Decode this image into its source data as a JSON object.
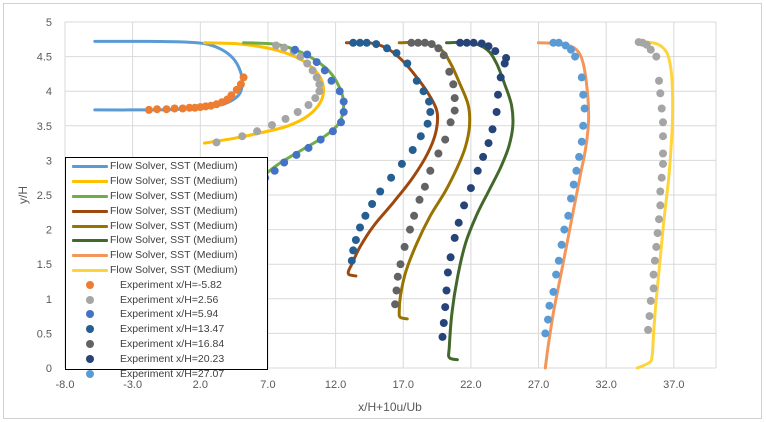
{
  "chart_data": {
    "type": "scatter",
    "title": "",
    "xlabel": "x/H+10u/Ub",
    "ylabel": "y/H",
    "xlim": [
      -8,
      41
    ],
    "ylim": [
      0,
      5
    ],
    "x_ticks": [
      "-8.0",
      "-3.0",
      "2.0",
      "7.0",
      "12.0",
      "17.0",
      "22.0",
      "27.0",
      "32.0",
      "37.0"
    ],
    "y_ticks": [
      "0",
      "0.5",
      "1",
      "1.5",
      "2",
      "2.5",
      "3",
      "3.5",
      "4",
      "4.5",
      "5"
    ],
    "grid": true,
    "legend_position": "left-bottom-inside",
    "lines": [
      {
        "name": "Flow Solver, SST (Medium)",
        "color": "#5b9bd5",
        "points": [
          [
            -5.8,
            4.72
          ],
          [
            -2,
            4.72
          ],
          [
            1,
            4.71
          ],
          [
            2.5,
            4.68
          ],
          [
            3.6,
            4.6
          ],
          [
            4.4,
            4.48
          ],
          [
            4.9,
            4.32
          ],
          [
            5.1,
            4.15
          ],
          [
            5.0,
            4.0
          ],
          [
            4.6,
            3.9
          ],
          [
            3.8,
            3.82
          ],
          [
            2.5,
            3.77
          ],
          [
            0.5,
            3.74
          ],
          [
            -2,
            3.73
          ],
          [
            -5.8,
            3.73
          ]
        ]
      },
      {
        "name": "Flow Solver, SST (Medium)",
        "color": "#ffc000",
        "points": [
          [
            2.3,
            4.7
          ],
          [
            5,
            4.68
          ],
          [
            7.5,
            4.6
          ],
          [
            9.5,
            4.45
          ],
          [
            10.7,
            4.25
          ],
          [
            11.1,
            4.05
          ],
          [
            10.9,
            3.85
          ],
          [
            10,
            3.65
          ],
          [
            8.5,
            3.5
          ],
          [
            6.5,
            3.4
          ],
          [
            4.5,
            3.32
          ],
          [
            2.3,
            3.25
          ]
        ]
      },
      {
        "name": "Flow Solver, SST (Medium)",
        "color": "#70ad47",
        "points": [
          [
            5.2,
            4.7
          ],
          [
            7.5,
            4.68
          ],
          [
            9,
            4.6
          ],
          [
            10.5,
            4.45
          ],
          [
            11.7,
            4.25
          ],
          [
            12.4,
            4.0
          ],
          [
            12.6,
            3.8
          ],
          [
            12.3,
            3.55
          ],
          [
            11.2,
            3.35
          ],
          [
            9.5,
            3.15
          ],
          [
            7.8,
            2.95
          ],
          [
            6.5,
            2.75
          ],
          [
            5.8,
            2.63
          ]
        ]
      },
      {
        "name": "Flow Solver, SST (Medium)",
        "color": "#9e480e",
        "points": [
          [
            12.8,
            4.7
          ],
          [
            14.5,
            4.7
          ],
          [
            15.8,
            4.62
          ],
          [
            16.9,
            4.45
          ],
          [
            18,
            4.2
          ],
          [
            18.9,
            3.95
          ],
          [
            19.5,
            3.7
          ],
          [
            19.4,
            3.4
          ],
          [
            18.8,
            3.1
          ],
          [
            17.7,
            2.75
          ],
          [
            16.3,
            2.4
          ],
          [
            14.8,
            2.05
          ],
          [
            13.8,
            1.75
          ],
          [
            13.2,
            1.5
          ],
          [
            12.95,
            1.4
          ],
          [
            13.0,
            1.35
          ],
          [
            13.5,
            1.33
          ]
        ]
      },
      {
        "name": "Flow Solver, SST (Medium)",
        "color": "#997300",
        "points": [
          [
            16.7,
            4.7
          ],
          [
            18.5,
            4.7
          ],
          [
            19.8,
            4.6
          ],
          [
            20.5,
            4.4
          ],
          [
            21.2,
            4.1
          ],
          [
            21.8,
            3.8
          ],
          [
            21.9,
            3.5
          ],
          [
            21.6,
            3.2
          ],
          [
            21,
            2.9
          ],
          [
            20.1,
            2.55
          ],
          [
            19,
            2.2
          ],
          [
            18,
            1.8
          ],
          [
            17.2,
            1.4
          ],
          [
            16.8,
            1.05
          ],
          [
            16.7,
            0.8
          ],
          [
            16.8,
            0.73
          ],
          [
            17.3,
            0.71
          ]
        ]
      },
      {
        "name": "Flow Solver, SST (Medium)",
        "color": "#43682b",
        "points": [
          [
            20.2,
            4.7
          ],
          [
            22,
            4.7
          ],
          [
            23.2,
            4.6
          ],
          [
            23.9,
            4.4
          ],
          [
            24.5,
            4.1
          ],
          [
            25.0,
            3.8
          ],
          [
            25.1,
            3.5
          ],
          [
            24.8,
            3.2
          ],
          [
            24.2,
            2.9
          ],
          [
            23.3,
            2.55
          ],
          [
            22.4,
            2.2
          ],
          [
            21.6,
            1.8
          ],
          [
            21.0,
            1.3
          ],
          [
            20.6,
            0.8
          ],
          [
            20.4,
            0.3
          ],
          [
            20.4,
            0.15
          ],
          [
            21.0,
            0.12
          ]
        ]
      },
      {
        "name": "Flow Solver, SST (Medium)",
        "color": "#f4955a",
        "points": [
          [
            27,
            4.7
          ],
          [
            28.8,
            4.68
          ],
          [
            29.8,
            4.6
          ],
          [
            30.3,
            4.4
          ],
          [
            30.6,
            4.0
          ],
          [
            30.7,
            3.6
          ],
          [
            30.5,
            3.2
          ],
          [
            30.1,
            2.8
          ],
          [
            29.6,
            2.3
          ],
          [
            29.1,
            1.8
          ],
          [
            28.6,
            1.3
          ],
          [
            28.1,
            0.8
          ],
          [
            27.7,
            0.3
          ],
          [
            27.5,
            0
          ]
        ]
      },
      {
        "name": "Flow Solver, SST (Medium)",
        "color": "#ffd43b",
        "points": [
          [
            34.5,
            4.72
          ],
          [
            35.8,
            4.68
          ],
          [
            36.5,
            4.55
          ],
          [
            36.8,
            4.3
          ],
          [
            36.9,
            4.0
          ],
          [
            36.9,
            3.6
          ],
          [
            36.8,
            3.2
          ],
          [
            36.6,
            2.7
          ],
          [
            36.3,
            2.2
          ],
          [
            36.0,
            1.6
          ],
          [
            35.7,
            1.0
          ],
          [
            35.5,
            0.5
          ],
          [
            35.4,
            0.18
          ],
          [
            35.2,
            0.08
          ],
          [
            34.3,
            0
          ]
        ]
      }
    ],
    "scatter": [
      {
        "name": "Experiment x/H=-5.82",
        "color": "#ed7d31",
        "points": [
          [
            -1.8,
            3.73
          ],
          [
            -1.2,
            3.74
          ],
          [
            -0.5,
            3.74
          ],
          [
            0.1,
            3.75
          ],
          [
            0.7,
            3.75
          ],
          [
            1.2,
            3.76
          ],
          [
            1.6,
            3.76
          ],
          [
            2.0,
            3.77
          ],
          [
            2.4,
            3.78
          ],
          [
            2.8,
            3.79
          ],
          [
            3.2,
            3.81
          ],
          [
            3.6,
            3.84
          ],
          [
            4.0,
            3.88
          ],
          [
            4.3,
            3.94
          ],
          [
            4.7,
            4.02
          ],
          [
            5.0,
            4.1
          ],
          [
            5.2,
            4.2
          ]
        ]
      },
      {
        "name": "Experiment x/H=2.56",
        "color": "#a5a5a5",
        "points": [
          [
            3.2,
            3.26
          ],
          [
            5.1,
            3.35
          ],
          [
            6.2,
            3.42
          ],
          [
            7.3,
            3.51
          ],
          [
            8.3,
            3.6
          ],
          [
            9.2,
            3.7
          ],
          [
            10.0,
            3.8
          ],
          [
            10.5,
            3.9
          ],
          [
            10.8,
            4.0
          ],
          [
            10.8,
            4.1
          ],
          [
            10.6,
            4.2
          ],
          [
            10.3,
            4.3
          ],
          [
            9.9,
            4.4
          ],
          [
            9.4,
            4.5
          ],
          [
            8.9,
            4.58
          ],
          [
            8.2,
            4.63
          ],
          [
            7.6,
            4.66
          ]
        ]
      },
      {
        "name": "Experiment x/H=5.94",
        "color": "#4472c4",
        "points": [
          [
            5.9,
            2.65
          ],
          [
            6.8,
            2.75
          ],
          [
            7.5,
            2.85
          ],
          [
            8.2,
            2.97
          ],
          [
            9.1,
            3.08
          ],
          [
            10.0,
            3.18
          ],
          [
            10.9,
            3.3
          ],
          [
            11.8,
            3.42
          ],
          [
            12.4,
            3.55
          ],
          [
            12.6,
            3.7
          ],
          [
            12.6,
            3.85
          ],
          [
            12.3,
            4.0
          ],
          [
            11.7,
            4.15
          ],
          [
            11.2,
            4.3
          ],
          [
            10.6,
            4.42
          ],
          [
            9.9,
            4.53
          ],
          [
            9.0,
            4.6
          ]
        ]
      },
      {
        "name": "Experiment x/H=13.47",
        "color": "#255e91",
        "points": [
          [
            13.2,
            1.55
          ],
          [
            13.3,
            1.7
          ],
          [
            13.5,
            1.85
          ],
          [
            13.8,
            2.03
          ],
          [
            14.2,
            2.2
          ],
          [
            14.7,
            2.37
          ],
          [
            15.3,
            2.55
          ],
          [
            16.1,
            2.75
          ],
          [
            16.9,
            2.95
          ],
          [
            17.7,
            3.15
          ],
          [
            18.3,
            3.35
          ],
          [
            18.8,
            3.53
          ],
          [
            19.0,
            3.7
          ],
          [
            18.9,
            3.85
          ],
          [
            18.5,
            4.0
          ],
          [
            18.0,
            4.15
          ],
          [
            17.3,
            4.4
          ],
          [
            16.5,
            4.55
          ],
          [
            15.8,
            4.62
          ],
          [
            15.0,
            4.68
          ],
          [
            14.3,
            4.7
          ],
          [
            13.8,
            4.7
          ],
          [
            13.3,
            4.7
          ]
        ]
      },
      {
        "name": "Experiment x/H=16.84",
        "color": "#636363",
        "points": [
          [
            16.4,
            0.92
          ],
          [
            16.5,
            1.12
          ],
          [
            16.6,
            1.32
          ],
          [
            16.8,
            1.5
          ],
          [
            17.1,
            1.75
          ],
          [
            17.5,
            2.0
          ],
          [
            17.8,
            2.2
          ],
          [
            18.2,
            2.43
          ],
          [
            18.6,
            2.62
          ],
          [
            19.0,
            2.85
          ],
          [
            19.6,
            3.1
          ],
          [
            20.1,
            3.3
          ],
          [
            20.5,
            3.55
          ],
          [
            20.8,
            3.72
          ],
          [
            20.8,
            3.9
          ],
          [
            20.7,
            4.1
          ],
          [
            20.4,
            4.28
          ],
          [
            20.0,
            4.52
          ],
          [
            19.6,
            4.62
          ],
          [
            19.1,
            4.68
          ],
          [
            18.6,
            4.7
          ],
          [
            18.1,
            4.7
          ],
          [
            17.6,
            4.7
          ]
        ]
      },
      {
        "name": "Experiment x/H=20.23",
        "color": "#264478",
        "points": [
          [
            19.9,
            0.45
          ],
          [
            20.0,
            0.65
          ],
          [
            20.1,
            0.88
          ],
          [
            20.2,
            1.12
          ],
          [
            20.3,
            1.38
          ],
          [
            20.5,
            1.6
          ],
          [
            20.8,
            1.88
          ],
          [
            21.1,
            2.1
          ],
          [
            21.5,
            2.35
          ],
          [
            22.0,
            2.6
          ],
          [
            22.5,
            2.85
          ],
          [
            22.9,
            3.05
          ],
          [
            23.3,
            3.25
          ],
          [
            23.6,
            3.45
          ],
          [
            23.9,
            3.7
          ],
          [
            24.0,
            3.95
          ],
          [
            24.2,
            4.2
          ],
          [
            24.5,
            4.4
          ],
          [
            24.6,
            4.48
          ],
          [
            23.8,
            4.58
          ],
          [
            23.3,
            4.65
          ],
          [
            22.8,
            4.69
          ],
          [
            22.2,
            4.7
          ],
          [
            21.7,
            4.7
          ],
          [
            21.2,
            4.7
          ]
        ]
      },
      {
        "name": "Experiment x/H=27.07",
        "color": "#5b9bd5",
        "points": [
          [
            27.5,
            0.5
          ],
          [
            27.7,
            0.7
          ],
          [
            27.8,
            0.9
          ],
          [
            28.1,
            1.1
          ],
          [
            28.3,
            1.35
          ],
          [
            28.5,
            1.55
          ],
          [
            28.7,
            1.78
          ],
          [
            28.9,
            2.0
          ],
          [
            29.2,
            2.2
          ],
          [
            29.4,
            2.45
          ],
          [
            29.6,
            2.65
          ],
          [
            29.8,
            2.85
          ],
          [
            30.0,
            3.05
          ],
          [
            30.2,
            3.27
          ],
          [
            30.3,
            3.5
          ],
          [
            30.4,
            3.75
          ],
          [
            30.3,
            3.95
          ],
          [
            30.2,
            4.2
          ],
          [
            29.7,
            4.5
          ],
          [
            29.4,
            4.6
          ],
          [
            29.0,
            4.66
          ],
          [
            28.5,
            4.7
          ],
          [
            28.1,
            4.7
          ]
        ]
      },
      {
        "name": "",
        "color": "#a5a5a5",
        "points": [
          [
            35.1,
            0.55
          ],
          [
            35.2,
            0.75
          ],
          [
            35.3,
            0.97
          ],
          [
            35.5,
            1.15
          ],
          [
            35.5,
            1.35
          ],
          [
            35.6,
            1.55
          ],
          [
            35.7,
            1.75
          ],
          [
            35.8,
            1.95
          ],
          [
            35.9,
            2.15
          ],
          [
            36.0,
            2.35
          ],
          [
            36.0,
            2.55
          ],
          [
            36.1,
            2.75
          ],
          [
            36.2,
            2.95
          ],
          [
            36.2,
            3.1
          ],
          [
            36.2,
            3.35
          ],
          [
            36.2,
            3.55
          ],
          [
            36.1,
            3.75
          ],
          [
            36.0,
            3.97
          ],
          [
            35.9,
            4.15
          ],
          [
            35.7,
            4.5
          ],
          [
            35.3,
            4.6
          ],
          [
            35.0,
            4.67
          ],
          [
            34.7,
            4.7
          ],
          [
            34.4,
            4.71
          ]
        ]
      }
    ]
  }
}
